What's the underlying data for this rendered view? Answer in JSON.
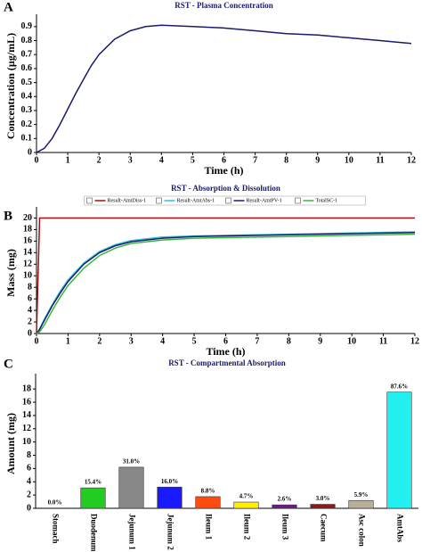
{
  "chart_data": [
    {
      "type": "line",
      "panel_label": "A",
      "title": "RST - Plasma Concentration",
      "x_label": "Time (h)",
      "y_label": "Concentration (µg/mL)",
      "x": [
        0,
        0.25,
        0.5,
        0.75,
        1,
        1.25,
        1.5,
        1.75,
        2,
        2.5,
        3,
        3.5,
        4,
        5,
        6,
        7,
        8,
        9,
        10,
        11,
        12
      ],
      "values": [
        0,
        0.03,
        0.1,
        0.2,
        0.31,
        0.42,
        0.52,
        0.62,
        0.7,
        0.81,
        0.87,
        0.9,
        0.91,
        0.9,
        0.89,
        0.87,
        0.85,
        0.84,
        0.82,
        0.8,
        0.78
      ],
      "color": "#1a1a6e",
      "xlim": [
        0,
        12
      ],
      "xticks": [
        0,
        1,
        2,
        3,
        4,
        5,
        6,
        7,
        8,
        9,
        10,
        11,
        12
      ],
      "ylim": [
        0,
        0.95
      ],
      "yticks": [
        0,
        0.1,
        0.2,
        0.3,
        0.4,
        0.5,
        0.6,
        0.7,
        0.8,
        0.9
      ]
    },
    {
      "type": "line",
      "panel_label": "B",
      "title": "RST - Absorption & Dissolution",
      "x_label": "Time (h)",
      "y_label": "Mass (mg)",
      "x": [
        0,
        0.1,
        0.25,
        0.5,
        0.75,
        1,
        1.5,
        2,
        2.5,
        3,
        4,
        5,
        6,
        8,
        10,
        12
      ],
      "series": [
        {
          "name": "Result-AmtDiss-1",
          "color": "#a01010",
          "values": [
            0,
            20,
            20,
            20,
            20,
            20,
            20,
            20,
            20,
            20,
            20,
            20,
            20,
            20,
            20,
            20
          ]
        },
        {
          "name": "Result-AmtAbs-1",
          "color": "#29c4e0",
          "values": [
            0,
            0.8,
            2.5,
            5,
            7.3,
            9.3,
            12.2,
            14.2,
            15.4,
            16.1,
            16.7,
            16.9,
            17.0,
            17.2,
            17.4,
            17.6
          ]
        },
        {
          "name": "Result-AmtPV-1",
          "color": "#1a1a6e",
          "values": [
            0,
            0.7,
            2.3,
            4.8,
            7.0,
            9.0,
            12.0,
            14.0,
            15.2,
            15.9,
            16.5,
            16.8,
            16.9,
            17.1,
            17.3,
            17.5
          ]
        },
        {
          "name": "TotalSC-1",
          "color": "#3cb53c",
          "values": [
            0,
            0.3,
            1.5,
            4.0,
            6.3,
            8.3,
            11.3,
            13.5,
            14.8,
            15.6,
            16.2,
            16.5,
            16.6,
            16.8,
            17.0,
            17.2
          ]
        }
      ],
      "xlim": [
        0,
        12
      ],
      "xticks": [
        0,
        1,
        2,
        3,
        4,
        5,
        6,
        7,
        8,
        9,
        10,
        11,
        12
      ],
      "ylim": [
        0,
        21
      ],
      "yticks": [
        0,
        2,
        4,
        6,
        8,
        10,
        12,
        14,
        16,
        18,
        20
      ],
      "legend": "top"
    },
    {
      "type": "bar",
      "panel_label": "C",
      "title": "RST - Compartmental Absorption",
      "y_label": "Amount (mg)",
      "categories": [
        "Stomach",
        "Duodenum",
        "Jejunum 1",
        "Jejunum 2",
        "Ileum 1",
        "Ileum 2",
        "Ileum 3",
        "Caecum",
        "Asc colon",
        "AmtAbs"
      ],
      "values": [
        0,
        3.08,
        6.2,
        3.2,
        1.76,
        0.94,
        0.52,
        0.6,
        1.18,
        17.52
      ],
      "value_labels": [
        "0.0%",
        "15.4%",
        "31.0%",
        "16.0%",
        "8.8%",
        "4.7%",
        "2.6%",
        "3.0%",
        "5.9%",
        "87.6%"
      ],
      "colors": [
        "#ffffff",
        "#22cc22",
        "#888888",
        "#1a1aff",
        "#ff4a10",
        "#ffee00",
        "#6a1a8a",
        "#8b1a1a",
        "#b8ae9a",
        "#22f0f0"
      ],
      "ylim": [
        0,
        19.5
      ],
      "yticks": [
        0,
        2,
        4,
        6,
        8,
        10,
        12,
        14,
        16,
        18
      ]
    }
  ]
}
